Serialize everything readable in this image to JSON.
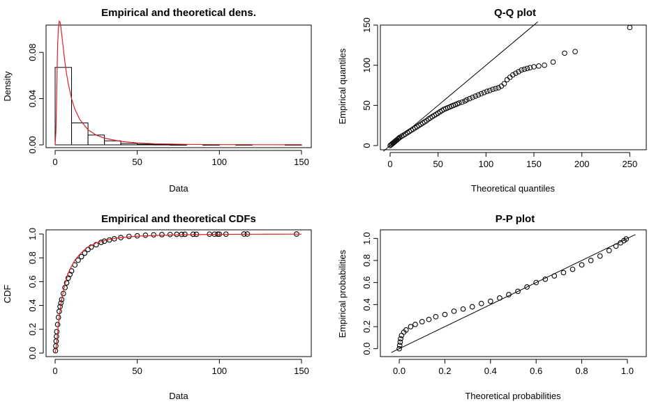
{
  "chart_data": [
    {
      "type": "histogram",
      "title": "Empirical and theoretical dens.",
      "xlabel": "Data",
      "ylabel": "Density",
      "xlim": [
        0,
        150
      ],
      "ylim": [
        0,
        0.1
      ],
      "xticks": [
        "0",
        "50",
        "100",
        "150"
      ],
      "yticks": [
        "0.00",
        "0.04",
        "0.08"
      ],
      "ytick_values": [
        0,
        0.04,
        0.08
      ],
      "bins": [
        {
          "from": 0,
          "to": 10,
          "density": 0.067
        },
        {
          "from": 10,
          "to": 20,
          "density": 0.019
        },
        {
          "from": 20,
          "to": 30,
          "density": 0.0085
        },
        {
          "from": 30,
          "to": 40,
          "density": 0.0035
        },
        {
          "from": 40,
          "to": 50,
          "density": 0.0012
        },
        {
          "from": 50,
          "to": 60,
          "density": 0.0006
        },
        {
          "from": 60,
          "to": 70,
          "density": 0.0003
        },
        {
          "from": 70,
          "to": 80,
          "density": 0.0001
        },
        {
          "from": 90,
          "to": 100,
          "density": 0.0001
        },
        {
          "from": 110,
          "to": 120,
          "density": 0.0001
        },
        {
          "from": 140,
          "to": 150,
          "density": 0.0001
        }
      ],
      "theoretical_density": {
        "color": "#dd2222",
        "x": [
          0,
          0.5,
          1,
          1.5,
          2,
          2.5,
          3,
          3.5,
          4,
          5,
          6,
          7,
          8,
          10,
          12,
          15,
          20,
          25,
          30,
          40,
          50,
          60,
          80,
          100,
          125,
          150
        ],
        "y": [
          0,
          0.012,
          0.05,
          0.085,
          0.101,
          0.107,
          0.106,
          0.102,
          0.096,
          0.083,
          0.071,
          0.061,
          0.053,
          0.04,
          0.031,
          0.022,
          0.013,
          0.0085,
          0.0058,
          0.003,
          0.0017,
          0.001,
          0.0004,
          0.0002,
          0.0001,
          5e-05
        ]
      }
    },
    {
      "type": "scatter",
      "title": "Q-Q plot",
      "xlabel": "Theoretical quantiles",
      "ylabel": "Empirical quantiles",
      "xlim": [
        0,
        257
      ],
      "ylim": [
        0,
        150
      ],
      "xticks": [
        "0",
        "50",
        "100",
        "150",
        "200",
        "250"
      ],
      "yticks": [
        "0",
        "50",
        "100",
        "150"
      ],
      "reference_line": "y = x",
      "points": [
        [
          0,
          0
        ],
        [
          1,
          1
        ],
        [
          2,
          2
        ],
        [
          3,
          3
        ],
        [
          4,
          4
        ],
        [
          5,
          5
        ],
        [
          6,
          6
        ],
        [
          7,
          7
        ],
        [
          8,
          8
        ],
        [
          9,
          9
        ],
        [
          10,
          10
        ],
        [
          12,
          11.5
        ],
        [
          14,
          13
        ],
        [
          16,
          14.5
        ],
        [
          18,
          16
        ],
        [
          20,
          17.5
        ],
        [
          22,
          19
        ],
        [
          24,
          20.5
        ],
        [
          26,
          22
        ],
        [
          28,
          23.5
        ],
        [
          30,
          25
        ],
        [
          32,
          26.5
        ],
        [
          34,
          28
        ],
        [
          36,
          29.5
        ],
        [
          38,
          31
        ],
        [
          40,
          33
        ],
        [
          42,
          34.5
        ],
        [
          44,
          36
        ],
        [
          46,
          37.5
        ],
        [
          48,
          39
        ],
        [
          50,
          40.5
        ],
        [
          52,
          42
        ],
        [
          54,
          43.5
        ],
        [
          56,
          45
        ],
        [
          58,
          46
        ],
        [
          60,
          47
        ],
        [
          62,
          48
        ],
        [
          64,
          49
        ],
        [
          66,
          50
        ],
        [
          68,
          51
        ],
        [
          70,
          52
        ],
        [
          72,
          53
        ],
        [
          75,
          54
        ],
        [
          78,
          55.5
        ],
        [
          80,
          57
        ],
        [
          83,
          58.5
        ],
        [
          86,
          60
        ],
        [
          89,
          61.5
        ],
        [
          92,
          63
        ],
        [
          95,
          64.5
        ],
        [
          98,
          66
        ],
        [
          101,
          67.5
        ],
        [
          104,
          68.5
        ],
        [
          107,
          70
        ],
        [
          110,
          71
        ],
        [
          113,
          72
        ],
        [
          116,
          74
        ],
        [
          119,
          77
        ],
        [
          122,
          82
        ],
        [
          125,
          85
        ],
        [
          128,
          88
        ],
        [
          131,
          90
        ],
        [
          134,
          92
        ],
        [
          137,
          94
        ],
        [
          140,
          95
        ],
        [
          143,
          96
        ],
        [
          146,
          97
        ],
        [
          150,
          98
        ],
        [
          155,
          99
        ],
        [
          161,
          100
        ],
        [
          170,
          104
        ],
        [
          182,
          115
        ],
        [
          193,
          117
        ],
        [
          250,
          147
        ]
      ]
    },
    {
      "type": "scatter",
      "title": "Empirical and theoretical CDFs",
      "xlabel": "Data",
      "ylabel": "CDF",
      "xlim": [
        0,
        150
      ],
      "ylim": [
        0,
        1
      ],
      "xticks": [
        "0",
        "50",
        "100",
        "150"
      ],
      "yticks": [
        "0.0",
        "0.2",
        "0.4",
        "0.6",
        "0.8",
        "1.0"
      ],
      "ytick_values": [
        0,
        0.2,
        0.4,
        0.6,
        0.8,
        1.0
      ],
      "points": [
        [
          0.2,
          0.02
        ],
        [
          0.4,
          0.06
        ],
        [
          0.6,
          0.1
        ],
        [
          0.8,
          0.14
        ],
        [
          1,
          0.18
        ],
        [
          1.5,
          0.24
        ],
        [
          2,
          0.3
        ],
        [
          2.5,
          0.35
        ],
        [
          3,
          0.39
        ],
        [
          3.5,
          0.42
        ],
        [
          4,
          0.45
        ],
        [
          5,
          0.5
        ],
        [
          6,
          0.55
        ],
        [
          7,
          0.59
        ],
        [
          8,
          0.63
        ],
        [
          9,
          0.66
        ],
        [
          10,
          0.69
        ],
        [
          12,
          0.74
        ],
        [
          14,
          0.78
        ],
        [
          16,
          0.81
        ],
        [
          18,
          0.84
        ],
        [
          20,
          0.87
        ],
        [
          22,
          0.89
        ],
        [
          25,
          0.91
        ],
        [
          28,
          0.93
        ],
        [
          30,
          0.94
        ],
        [
          33,
          0.95
        ],
        [
          36,
          0.96
        ],
        [
          40,
          0.97
        ],
        [
          45,
          0.98
        ],
        [
          50,
          0.985
        ],
        [
          55,
          0.99
        ],
        [
          60,
          0.993
        ],
        [
          65,
          0.995
        ],
        [
          70,
          0.996
        ],
        [
          74,
          0.997
        ],
        [
          77,
          0.997
        ],
        [
          79,
          0.998
        ],
        [
          84,
          0.998
        ],
        [
          86,
          0.998
        ],
        [
          94,
          0.999
        ],
        [
          97,
          0.999
        ],
        [
          99,
          0.999
        ],
        [
          100,
          0.999
        ],
        [
          104,
          0.999
        ],
        [
          115,
          1.0
        ],
        [
          117,
          1.0
        ],
        [
          147,
          1.0
        ]
      ],
      "theoretical_cdf": {
        "color": "#dd2222",
        "x": [
          0,
          0.5,
          1,
          1.5,
          2,
          3,
          4,
          5,
          6,
          8,
          10,
          12,
          15,
          18,
          20,
          25,
          30,
          35,
          40,
          50,
          60,
          80,
          100,
          125,
          150
        ],
        "y": [
          0,
          0.04,
          0.1,
          0.17,
          0.24,
          0.36,
          0.45,
          0.52,
          0.58,
          0.67,
          0.73,
          0.78,
          0.83,
          0.87,
          0.89,
          0.925,
          0.945,
          0.96,
          0.97,
          0.982,
          0.988,
          0.994,
          0.997,
          0.998,
          0.999
        ]
      }
    },
    {
      "type": "scatter",
      "title": "P-P plot",
      "xlabel": "Theoretical probabilities",
      "ylabel": "Empirical probabilities",
      "xlim": [
        -0.04,
        1.04
      ],
      "ylim": [
        -0.04,
        1.04
      ],
      "xticks": [
        "0.0",
        "0.2",
        "0.4",
        "0.6",
        "0.8",
        "1.0"
      ],
      "yticks": [
        "0.0",
        "0.2",
        "0.4",
        "0.6",
        "0.8",
        "1.0"
      ],
      "tick_values": [
        0,
        0.2,
        0.4,
        0.6,
        0.8,
        1.0
      ],
      "reference_line": "y = x",
      "points": [
        [
          0,
          0
        ],
        [
          0.002,
          0.03
        ],
        [
          0.004,
          0.06
        ],
        [
          0.006,
          0.09
        ],
        [
          0.01,
          0.12
        ],
        [
          0.02,
          0.15
        ],
        [
          0.03,
          0.17
        ],
        [
          0.05,
          0.2
        ],
        [
          0.07,
          0.22
        ],
        [
          0.1,
          0.245
        ],
        [
          0.13,
          0.265
        ],
        [
          0.16,
          0.29
        ],
        [
          0.2,
          0.31
        ],
        [
          0.24,
          0.34
        ],
        [
          0.28,
          0.36
        ],
        [
          0.32,
          0.38
        ],
        [
          0.36,
          0.41
        ],
        [
          0.4,
          0.43
        ],
        [
          0.44,
          0.46
        ],
        [
          0.48,
          0.49
        ],
        [
          0.52,
          0.52
        ],
        [
          0.56,
          0.56
        ],
        [
          0.6,
          0.6
        ],
        [
          0.64,
          0.63
        ],
        [
          0.68,
          0.66
        ],
        [
          0.72,
          0.69
        ],
        [
          0.76,
          0.72
        ],
        [
          0.8,
          0.76
        ],
        [
          0.84,
          0.8
        ],
        [
          0.88,
          0.84
        ],
        [
          0.92,
          0.89
        ],
        [
          0.95,
          0.93
        ],
        [
          0.97,
          0.96
        ],
        [
          0.985,
          0.98
        ],
        [
          0.995,
          0.995
        ]
      ]
    }
  ]
}
